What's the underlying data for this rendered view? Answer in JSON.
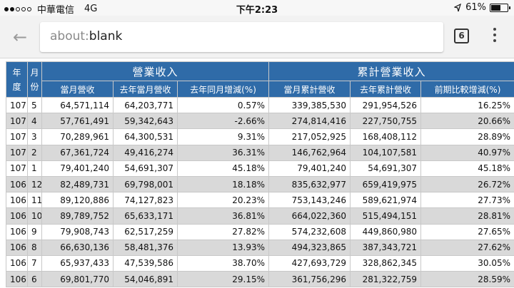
{
  "status_bar": {
    "carrier": "中華電信",
    "network": "4G",
    "time": "下午2:23",
    "battery": "61%",
    "battery_level": 0.61,
    "signal_bars": 2,
    "signal_total": 5
  },
  "browser": {
    "back_icon": "←",
    "url_scheme": "about:",
    "url_path": "blank",
    "tab_count": "6"
  },
  "table": {
    "header": {
      "year": "年度",
      "month": "月份",
      "group_revenue": "營業收入",
      "group_cumulative": "累計營業收入",
      "columns": [
        "當月營收",
        "去年當月營收",
        "去年同月增減(%)",
        "當月累計營收",
        "去年累計營收",
        "前期比較增減(%)"
      ]
    },
    "rows": [
      [
        "107",
        "5",
        "64,571,114",
        "64,203,771",
        "0.57%",
        "339,385,530",
        "291,954,526",
        "16.25%"
      ],
      [
        "107",
        "4",
        "57,761,491",
        "59,342,643",
        "-2.66%",
        "274,814,416",
        "227,750,755",
        "20.66%"
      ],
      [
        "107",
        "3",
        "70,289,961",
        "64,300,531",
        "9.31%",
        "217,052,925",
        "168,408,112",
        "28.89%"
      ],
      [
        "107",
        "2",
        "67,361,724",
        "49,416,274",
        "36.31%",
        "146,762,964",
        "104,107,581",
        "40.97%"
      ],
      [
        "107",
        "1",
        "79,401,240",
        "54,691,307",
        "45.18%",
        "79,401,240",
        "54,691,307",
        "45.18%"
      ],
      [
        "106",
        "12",
        "82,489,731",
        "69,798,001",
        "18.18%",
        "835,632,977",
        "659,419,975",
        "26.72%"
      ],
      [
        "106",
        "11",
        "89,120,886",
        "74,127,823",
        "20.23%",
        "753,143,246",
        "589,621,974",
        "27.73%"
      ],
      [
        "106",
        "10",
        "89,789,752",
        "65,633,171",
        "36.81%",
        "664,022,360",
        "515,494,151",
        "28.81%"
      ],
      [
        "106",
        "9",
        "79,908,743",
        "62,517,259",
        "27.82%",
        "574,232,608",
        "449,860,980",
        "27.65%"
      ],
      [
        "106",
        "8",
        "66,630,136",
        "58,481,376",
        "13.93%",
        "494,323,865",
        "387,343,721",
        "27.62%"
      ],
      [
        "106",
        "7",
        "65,937,433",
        "47,539,586",
        "38.70%",
        "427,693,729",
        "328,862,345",
        "30.05%"
      ],
      [
        "106",
        "6",
        "69,801,770",
        "54,046,891",
        "29.15%",
        "361,756,296",
        "281,322,759",
        "28.59%"
      ]
    ]
  }
}
